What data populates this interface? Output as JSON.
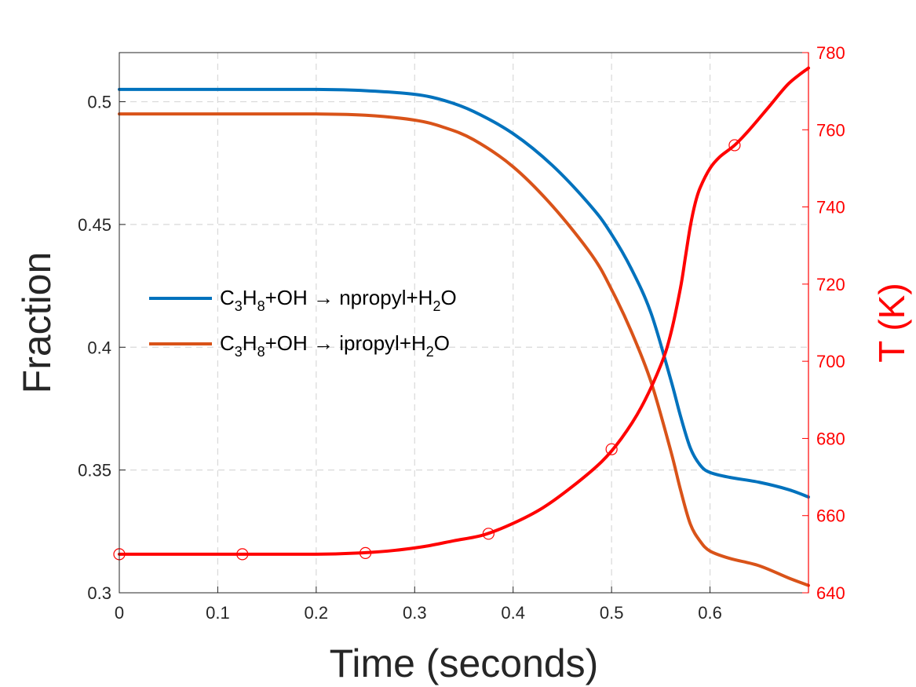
{
  "chart_data": {
    "type": "line",
    "xlabel": "Time (seconds)",
    "ylabel": "Fraction",
    "y2label": "T (K)",
    "xlim": [
      0,
      0.7
    ],
    "ylim": [
      0.3,
      0.52
    ],
    "y2lim": [
      640,
      780
    ],
    "xticks": [
      "0",
      "0.1",
      "0.2",
      "0.3",
      "0.4",
      "0.5",
      "0.6"
    ],
    "yticks": [
      "0.3",
      "0.35",
      "0.4",
      "0.45",
      "0.5"
    ],
    "y2ticks": [
      "640",
      "660",
      "680",
      "700",
      "720",
      "740",
      "760",
      "780"
    ],
    "grid": true,
    "legend_position": "center-left",
    "series": [
      {
        "name": "C3H8+OH → npropyl+H2O",
        "legend": {
          "a": "C",
          "a_sub": "3",
          "b": "H",
          "b_sub": "8",
          "mid": "+OH → npropyl+H",
          "c_sub": "2",
          "end": "O"
        },
        "axis": "left",
        "color": "#0072bd",
        "x": [
          0,
          0.1,
          0.2,
          0.25,
          0.3,
          0.33,
          0.36,
          0.4,
          0.44,
          0.48,
          0.5,
          0.52,
          0.54,
          0.56,
          0.57,
          0.58,
          0.59,
          0.6,
          0.62,
          0.65,
          0.68,
          0.7
        ],
        "y": [
          0.505,
          0.505,
          0.505,
          0.5045,
          0.503,
          0.5005,
          0.496,
          0.487,
          0.474,
          0.457,
          0.446,
          0.432,
          0.414,
          0.387,
          0.372,
          0.359,
          0.352,
          0.349,
          0.347,
          0.345,
          0.342,
          0.339
        ]
      },
      {
        "name": "C3H8+OH → ipropyl+H2O",
        "legend": {
          "a": "C",
          "a_sub": "3",
          "b": "H",
          "b_sub": "8",
          "mid": "+OH → ipropyl+H",
          "c_sub": "2",
          "end": "O"
        },
        "axis": "left",
        "color": "#d95319",
        "x": [
          0,
          0.1,
          0.2,
          0.25,
          0.3,
          0.33,
          0.36,
          0.4,
          0.44,
          0.48,
          0.5,
          0.52,
          0.54,
          0.56,
          0.57,
          0.58,
          0.59,
          0.6,
          0.62,
          0.65,
          0.68,
          0.7
        ],
        "y": [
          0.495,
          0.495,
          0.495,
          0.4945,
          0.4925,
          0.4895,
          0.4845,
          0.4735,
          0.4575,
          0.4375,
          0.4235,
          0.4065,
          0.386,
          0.358,
          0.342,
          0.328,
          0.321,
          0.317,
          0.314,
          0.311,
          0.306,
          0.303
        ]
      },
      {
        "name": "T",
        "axis": "right",
        "color": "#ff0000",
        "marker": "circle",
        "markers_x": [
          0,
          0.125,
          0.25,
          0.375,
          0.5,
          0.625
        ],
        "markers_y": [
          650,
          650,
          650.3,
          655.3,
          677.2,
          756
        ],
        "x": [
          0,
          0.1,
          0.2,
          0.25,
          0.28,
          0.31,
          0.34,
          0.37,
          0.4,
          0.43,
          0.46,
          0.49,
          0.51,
          0.53,
          0.55,
          0.56,
          0.57,
          0.575,
          0.58,
          0.585,
          0.59,
          0.6,
          0.61,
          0.625,
          0.64,
          0.66,
          0.68,
          0.7
        ],
        "y": [
          650,
          650,
          650,
          650.4,
          651,
          652,
          653.5,
          655,
          658,
          662,
          667.5,
          674,
          680,
          688,
          699,
          707,
          719,
          727,
          735,
          741,
          745,
          750,
          753,
          756,
          760,
          766,
          772,
          776
        ]
      }
    ]
  }
}
